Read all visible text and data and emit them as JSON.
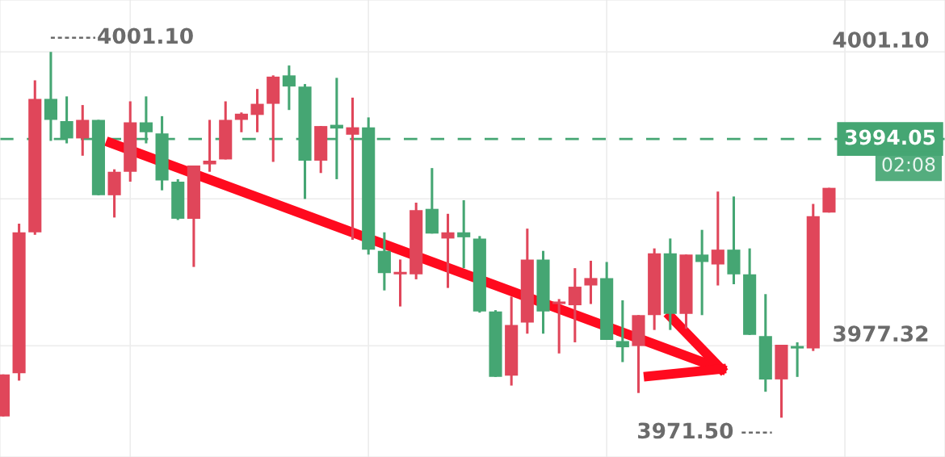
{
  "chart_data": {
    "type": "candlestick",
    "categories": [
      null,
      null,
      null,
      null,
      null,
      null,
      null,
      null,
      null,
      null,
      null,
      null,
      null,
      null,
      null,
      null,
      null,
      null,
      null,
      null,
      null,
      null,
      null,
      null,
      null,
      null,
      null,
      null,
      null,
      null,
      null,
      null,
      null,
      null,
      null,
      null,
      null,
      null,
      null,
      null,
      null,
      null,
      null,
      null,
      null,
      null,
      null,
      null,
      null,
      null,
      null,
      null,
      null
    ],
    "ohlc": [
      [
        3971.6,
        3975.0,
        3971.6,
        3975.0
      ],
      [
        3975.1,
        3987.2,
        3974.5,
        3986.5
      ],
      [
        3986.5,
        3998.8,
        3986.3,
        3997.3
      ],
      [
        3997.3,
        4001.1,
        3993.9,
        3995.6
      ],
      [
        3995.5,
        3997.5,
        3993.7,
        3994.1
      ],
      [
        3994.1,
        3996.8,
        3992.7,
        3995.6
      ],
      [
        3995.6,
        3995.6,
        3989.5,
        3989.5
      ],
      [
        3989.5,
        3991.6,
        3987.7,
        3991.4
      ],
      [
        3991.4,
        3997.1,
        3990.6,
        3995.4
      ],
      [
        3995.4,
        3997.5,
        3993.7,
        3994.6
      ],
      [
        3994.5,
        3995.9,
        3989.9,
        3990.7
      ],
      [
        3990.6,
        3990.8,
        3987.5,
        3987.6
      ],
      [
        3987.6,
        3991.9,
        3983.7,
        3991.9
      ],
      [
        3992.0,
        3995.6,
        3991.4,
        3992.3
      ],
      [
        3992.4,
        3997.1,
        3992.4,
        3995.6
      ],
      [
        3995.6,
        3996.2,
        3994.6,
        3996.1
      ],
      [
        3996.0,
        3998.1,
        3994.6,
        3996.9
      ],
      [
        3996.9,
        3999.2,
        3992.2,
        3999.1
      ],
      [
        3999.2,
        4000.0,
        3996.4,
        3998.3
      ],
      [
        3998.3,
        3998.5,
        3989.2,
        3992.3
      ],
      [
        3992.3,
        3995.1,
        3991.3,
        3995.1
      ],
      [
        3995.2,
        3999.0,
        3990.8,
        3994.9
      ],
      [
        3994.4,
        3997.4,
        3985.9,
        3995.0
      ],
      [
        3995.0,
        3995.8,
        3984.7,
        3985.1
      ],
      [
        3985.0,
        3986.5,
        3981.8,
        3983.2
      ],
      [
        3983.1,
        3984.3,
        3980.5,
        3983.3
      ],
      [
        3983.1,
        3988.9,
        3982.7,
        3988.3
      ],
      [
        3988.4,
        3991.7,
        3986.4,
        3986.4
      ],
      [
        3986.0,
        3988.0,
        3982.0,
        3986.5
      ],
      [
        3986.5,
        3989.1,
        3983.6,
        3986.1
      ],
      [
        3986.0,
        3986.2,
        3980.0,
        3980.1
      ],
      [
        3980.1,
        3980.2,
        3974.8,
        3974.8
      ],
      [
        3974.9,
        3981.3,
        3974.1,
        3979.0
      ],
      [
        3979.2,
        3986.8,
        3978.3,
        3984.3
      ],
      [
        3984.3,
        3985.0,
        3978.3,
        3980.1
      ],
      [
        3980.7,
        3981.1,
        3976.7,
        3980.9
      ],
      [
        3980.6,
        3983.6,
        3977.6,
        3982.1
      ],
      [
        3982.2,
        3984.2,
        3980.7,
        3982.8
      ],
      [
        3982.8,
        3984.1,
        3977.8,
        3977.8
      ],
      [
        3977.7,
        3981.0,
        3976.0,
        3977.2
      ],
      [
        3977.3,
        3979.8,
        3973.5,
        3979.8
      ],
      [
        3979.8,
        3985.2,
        3978.6,
        3984.8
      ],
      [
        3984.8,
        3986.0,
        3978.6,
        3979.9
      ],
      [
        3979.9,
        3984.7,
        3978.7,
        3984.7
      ],
      [
        3984.7,
        3986.7,
        3979.8,
        3984.1
      ],
      [
        3983.9,
        3989.8,
        3982.2,
        3985.1
      ],
      [
        3985.1,
        3989.4,
        3982.3,
        3983.1
      ],
      [
        3983.1,
        3985.2,
        3978.2,
        3978.2
      ],
      [
        3978.1,
        3981.5,
        3973.6,
        3974.6
      ],
      [
        3974.6,
        3977.4,
        3971.5,
        3977.4
      ],
      [
        3977.3,
        3977.6,
        3974.8,
        3977.1
      ],
      [
        3977.1,
        3988.8,
        3976.9,
        3987.8
      ],
      [
        3988.1,
        3990.1,
        3988.1,
        3990.1
      ]
    ],
    "colors": [
      "#e0465a",
      "#e0465a",
      "#e0465a",
      "#45a673",
      "#45a673",
      "#e0465a",
      "#45a673",
      "#e0465a",
      "#e0465a",
      "#45a673",
      "#45a673",
      "#45a673",
      "#e0465a",
      "#e0465a",
      "#e0465a",
      "#e0465a",
      "#e0465a",
      "#e0465a",
      "#45a673",
      "#45a673",
      "#e0465a",
      "#45a673",
      "#e0465a",
      "#45a673",
      "#45a673",
      "#e0465a",
      "#e0465a",
      "#45a673",
      "#e0465a",
      "#45a673",
      "#45a673",
      "#45a673",
      "#e0465a",
      "#e0465a",
      "#45a673",
      "#e0465a",
      "#e0465a",
      "#e0465a",
      "#45a673",
      "#45a673",
      "#e0465a",
      "#e0465a",
      "#45a673",
      "#e0465a",
      "#45a673",
      "#e0465a",
      "#45a673",
      "#45a673",
      "#45a673",
      "#e0465a",
      "#45a673",
      "#e0465a",
      "#e0465a"
    ],
    "ylim": [
      3968.32,
      4005.3
    ],
    "yticks": [
      {
        "value": 4001.1,
        "label": "4001.10"
      },
      {
        "value": 3989.21,
        "label": null
      },
      {
        "value": 3977.32,
        "label": "3977.32"
      }
    ],
    "grid": true,
    "ref_lines": [
      {
        "axis": "y",
        "value": 3994.05,
        "label": "3994.05",
        "color": "#45a673",
        "line_style": "dashed"
      }
    ],
    "annotations": [
      "4001.10",
      "3971.50",
      "02:08"
    ]
  }
}
